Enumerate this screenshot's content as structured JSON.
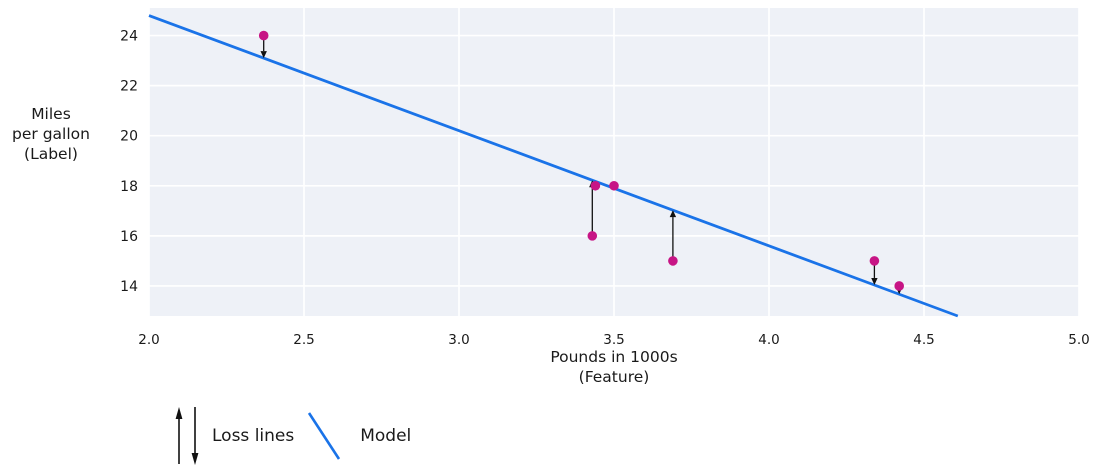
{
  "chart_data": {
    "type": "scatter",
    "title": "",
    "xlabel_lines": [
      "Pounds in 1000s",
      "(Feature)"
    ],
    "ylabel_lines": [
      "Miles",
      "per gallon",
      "(Label)"
    ],
    "xlim": [
      2.0,
      5.0
    ],
    "ylim": [
      12.8,
      25.1
    ],
    "xticks": [
      2.0,
      2.5,
      3.0,
      3.5,
      4.0,
      4.5,
      5.0
    ],
    "xtick_labels": [
      "2.0",
      "2.5",
      "3.0",
      "3.5",
      "4.0",
      "4.5",
      "5.0"
    ],
    "yticks": [
      14,
      16,
      18,
      20,
      22,
      24
    ],
    "ytick_labels": [
      "14",
      "16",
      "18",
      "20",
      "22",
      "24"
    ],
    "grid": true,
    "points": [
      {
        "x": 3.5,
        "y": 18
      },
      {
        "x": 3.69,
        "y": 15
      },
      {
        "x": 3.44,
        "y": 18
      },
      {
        "x": 3.43,
        "y": 16
      },
      {
        "x": 4.34,
        "y": 15
      },
      {
        "x": 4.42,
        "y": 14
      },
      {
        "x": 2.37,
        "y": 24
      }
    ],
    "model": {
      "slope": -4.6,
      "intercept": 34.0,
      "x1": 2.0,
      "y1": 24.8,
      "x2": 4.609,
      "y2": 12.8
    },
    "loss_arrows": [
      {
        "x": 2.37,
        "from_y": 24,
        "to_y": 23.1,
        "direction": "down"
      },
      {
        "x": 3.43,
        "from_y": 16,
        "to_y": 18.22,
        "direction": "up"
      },
      {
        "x": 3.69,
        "from_y": 15,
        "to_y": 17.03,
        "direction": "up"
      },
      {
        "x": 4.34,
        "from_y": 15,
        "to_y": 14.04,
        "direction": "down"
      },
      {
        "x": 4.42,
        "from_y": 14,
        "to_y": 13.67,
        "direction": "down"
      }
    ],
    "legend": [
      {
        "label": "Loss lines",
        "symbol": "loss-arrows"
      },
      {
        "label": "Model",
        "symbol": "blue-line"
      }
    ],
    "legend_position": "bottom-left",
    "colors": {
      "point": "#c71585",
      "model_line": "#1a73e8",
      "arrow": "#111111",
      "plot_bg": "#eef1f7",
      "grid": "#ffffff",
      "text": "#1a1a1a"
    }
  }
}
